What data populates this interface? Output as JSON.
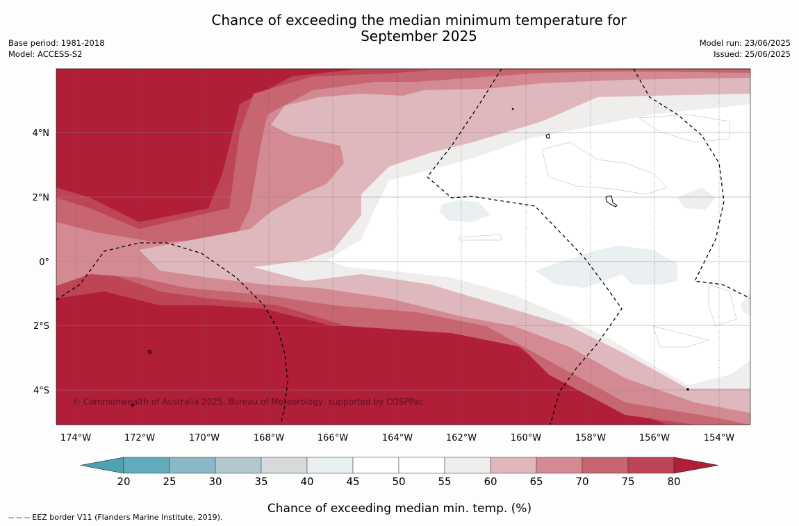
{
  "title_line1": "Chance of exceeding the median minimum temperature for",
  "title_line2": "September 2025",
  "meta_left": [
    "Base period: 1981-2018",
    "Model: ACCESS-S2"
  ],
  "meta_right": [
    "Model run: 23/06/2025",
    "Issued: 25/06/2025"
  ],
  "copyright": "© Commonwealth of Australia 2025, Bureau of Meteorology, supported by COSPPac",
  "longitude_labels": [
    "174°W",
    "172°W",
    "170°W",
    "168°W",
    "166°W",
    "164°W",
    "162°W",
    "160°W",
    "158°W",
    "156°W",
    "154°W"
  ],
  "latitude_labels": [
    "4°N",
    "2°N",
    "0°",
    "2°S",
    "4°S"
  ],
  "colorbar": {
    "ticks": [
      "20",
      "25",
      "30",
      "35",
      "40",
      "45",
      "50",
      "55",
      "60",
      "65",
      "70",
      "75",
      "80"
    ],
    "colors": [
      "#63aaba",
      "#8ab9c5",
      "#b0c8ce",
      "#d7dadb",
      "#eaf0f2",
      "#ffffff",
      "#ffffff",
      "#efeeed",
      "#dfb8bd",
      "#d48a93",
      "#c76570",
      "#bd4555"
    ],
    "under_color": "#4fa2b1",
    "over_color": "#b01e38",
    "label": "Chance of exceeding median min. temp. (%)"
  },
  "footer": "--  --  -- EEZ border V11 (Flanders Marine Institute, 2019)."
}
